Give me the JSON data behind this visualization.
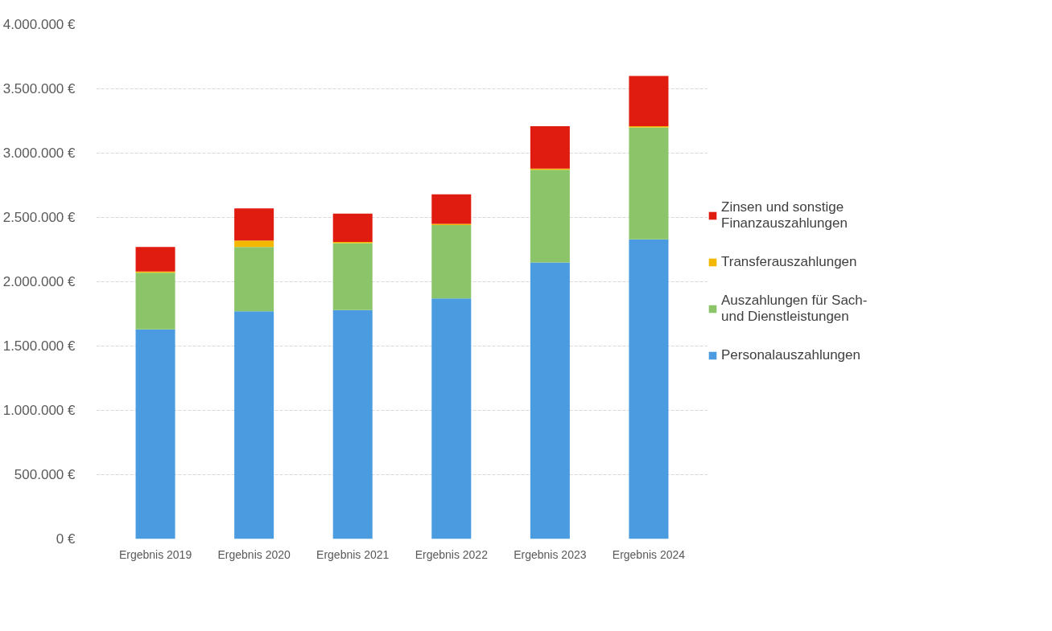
{
  "chart_data": {
    "type": "bar",
    "stacked": true,
    "categories": [
      "Ergebnis 2019",
      "Ergebnis 2020",
      "Ergebnis 2021",
      "Ergebnis 2022",
      "Ergebnis 2023",
      "Ergebnis 2024"
    ],
    "series": [
      {
        "name": "Personalauszahlungen",
        "color": "#4a9be0",
        "values": [
          1630000,
          1770000,
          1780000,
          1870000,
          2150000,
          2330000
        ]
      },
      {
        "name": "Auszahlungen für Sach- und Dienstleistungen",
        "color": "#8cc46a",
        "values": [
          440000,
          500000,
          520000,
          570000,
          720000,
          870000
        ]
      },
      {
        "name": "Transferauszahlungen",
        "color": "#f5b800",
        "values": [
          10000,
          50000,
          10000,
          10000,
          10000,
          10000
        ]
      },
      {
        "name": "Zinsen und sonstige Finanzauszahlungen",
        "color": "#e01b10",
        "values": [
          190000,
          250000,
          220000,
          230000,
          330000,
          390000
        ]
      }
    ],
    "ylim": [
      0,
      4000000
    ],
    "yticks": [
      {
        "value": 0,
        "label": "0 €"
      },
      {
        "value": 500000,
        "label": "500.000 €"
      },
      {
        "value": 1000000,
        "label": "1.000.000 €"
      },
      {
        "value": 1500000,
        "label": "1.500.000 €"
      },
      {
        "value": 2000000,
        "label": "2.000.000 €"
      },
      {
        "value": 2500000,
        "label": "2.500.000 €"
      },
      {
        "value": 3000000,
        "label": "3.000.000 €"
      },
      {
        "value": 3500000,
        "label": "3.500.000 €"
      },
      {
        "value": 4000000,
        "label": "4.000.000 €"
      }
    ],
    "grid": "y",
    "legend": "right"
  }
}
